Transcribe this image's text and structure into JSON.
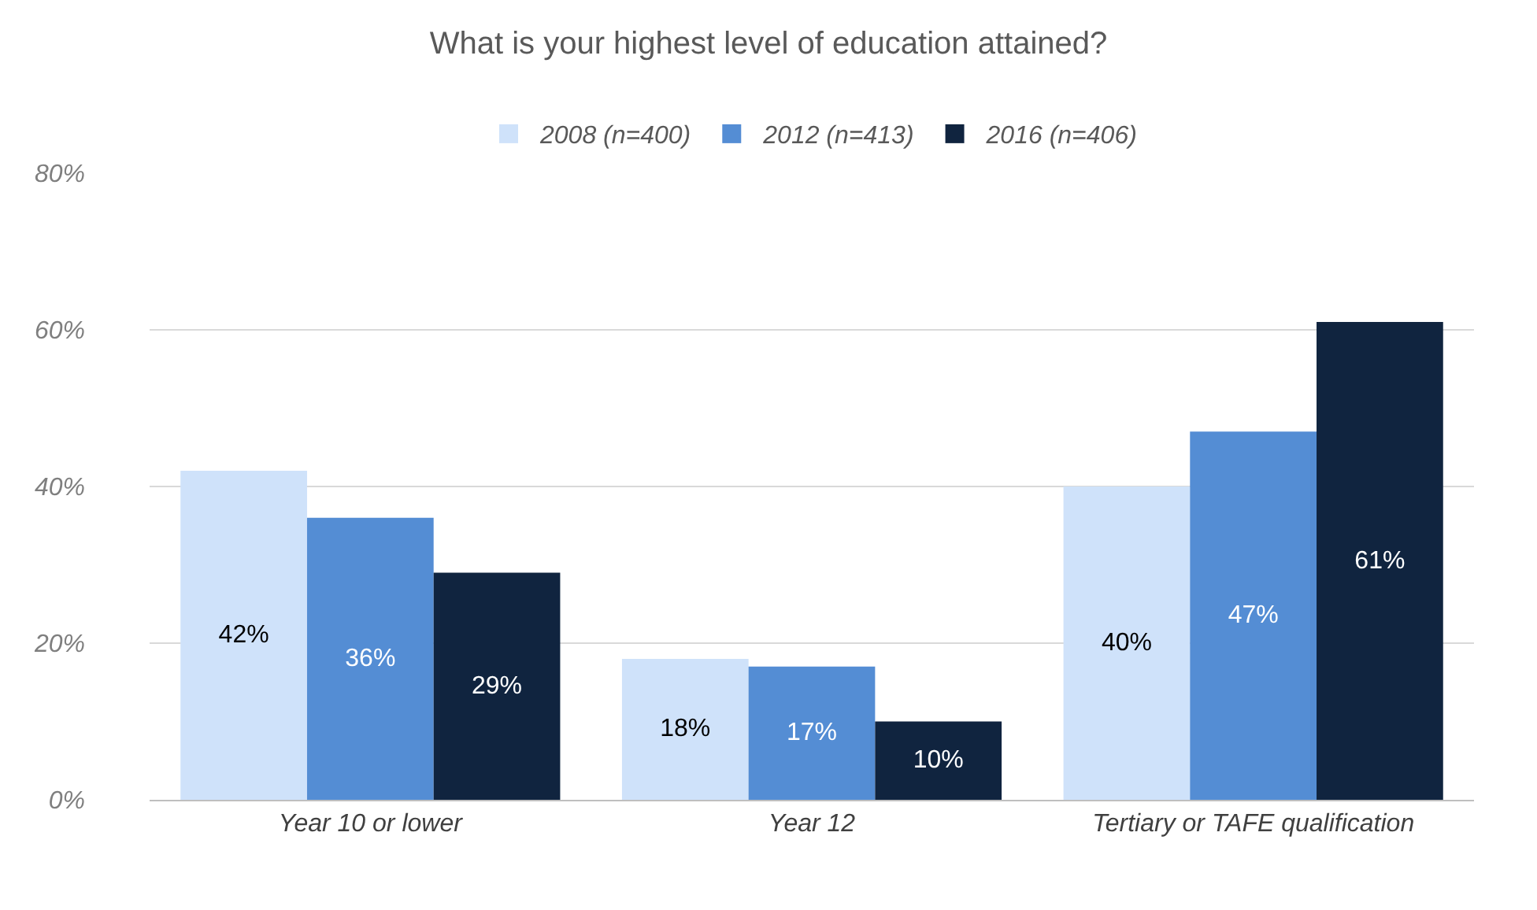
{
  "chart_data": {
    "type": "bar",
    "title": "What is your highest level of education attained?",
    "categories": [
      "Year 10 or lower",
      "Year 12",
      "Tertiary or TAFE qualification"
    ],
    "series": [
      {
        "name": "2008 (n=400)",
        "color": "#cfe2fa",
        "values": [
          42,
          18,
          40
        ],
        "value_labels": [
          "42%",
          "18%",
          "40%"
        ]
      },
      {
        "name": "2012 (n=413)",
        "color": "#548dd4",
        "values": [
          36,
          17,
          47
        ],
        "value_labels": [
          "36%",
          "17%",
          "47%"
        ]
      },
      {
        "name": "2016 (n=406)",
        "color": "#10243f",
        "values": [
          29,
          10,
          61
        ],
        "value_labels": [
          "29%",
          "10%",
          "61%"
        ]
      }
    ],
    "ylim": [
      0,
      80
    ],
    "yticks": [
      {
        "value": 0,
        "label": "0%"
      },
      {
        "value": 20,
        "label": "20%"
      },
      {
        "value": 40,
        "label": "40%"
      },
      {
        "value": 60,
        "label": "60%"
      },
      {
        "value": 80,
        "label": "80%"
      }
    ],
    "grid": "y",
    "legend": "top"
  }
}
